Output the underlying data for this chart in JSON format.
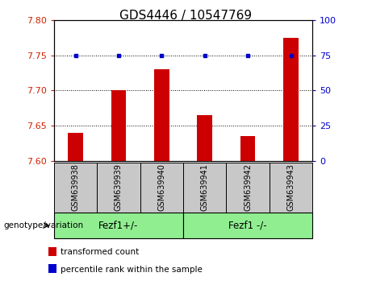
{
  "title": "GDS4446 / 10547769",
  "categories": [
    "GSM639938",
    "GSM639939",
    "GSM639940",
    "GSM639941",
    "GSM639942",
    "GSM639943"
  ],
  "bar_values": [
    7.64,
    7.7,
    7.73,
    7.665,
    7.635,
    7.775
  ],
  "percentile_values": [
    75,
    75,
    75,
    75,
    75,
    75
  ],
  "ylim_left": [
    7.6,
    7.8
  ],
  "ylim_right": [
    0,
    100
  ],
  "yticks_left": [
    7.6,
    7.65,
    7.7,
    7.75,
    7.8
  ],
  "yticks_right": [
    0,
    25,
    50,
    75,
    100
  ],
  "bar_color": "#cc0000",
  "dot_color": "#0000cc",
  "bar_bottom": 7.6,
  "groups": [
    {
      "label": "Fezf1+/-",
      "indices": [
        0,
        1,
        2
      ],
      "color": "#90ee90"
    },
    {
      "label": "Fezf1 -/-",
      "indices": [
        3,
        4,
        5
      ],
      "color": "#90ee90"
    }
  ],
  "group_row_label": "genotype/variation",
  "legend_bar_label": "transformed count",
  "legend_dot_label": "percentile rank within the sample",
  "bg_plot": "#ffffff",
  "bg_xticklabels": "#c8c8c8",
  "title_fontsize": 11,
  "tick_fontsize": 8,
  "axis_label_color_left": "#cc2200",
  "axis_label_color_right": "#0000cc",
  "bar_width": 0.35
}
